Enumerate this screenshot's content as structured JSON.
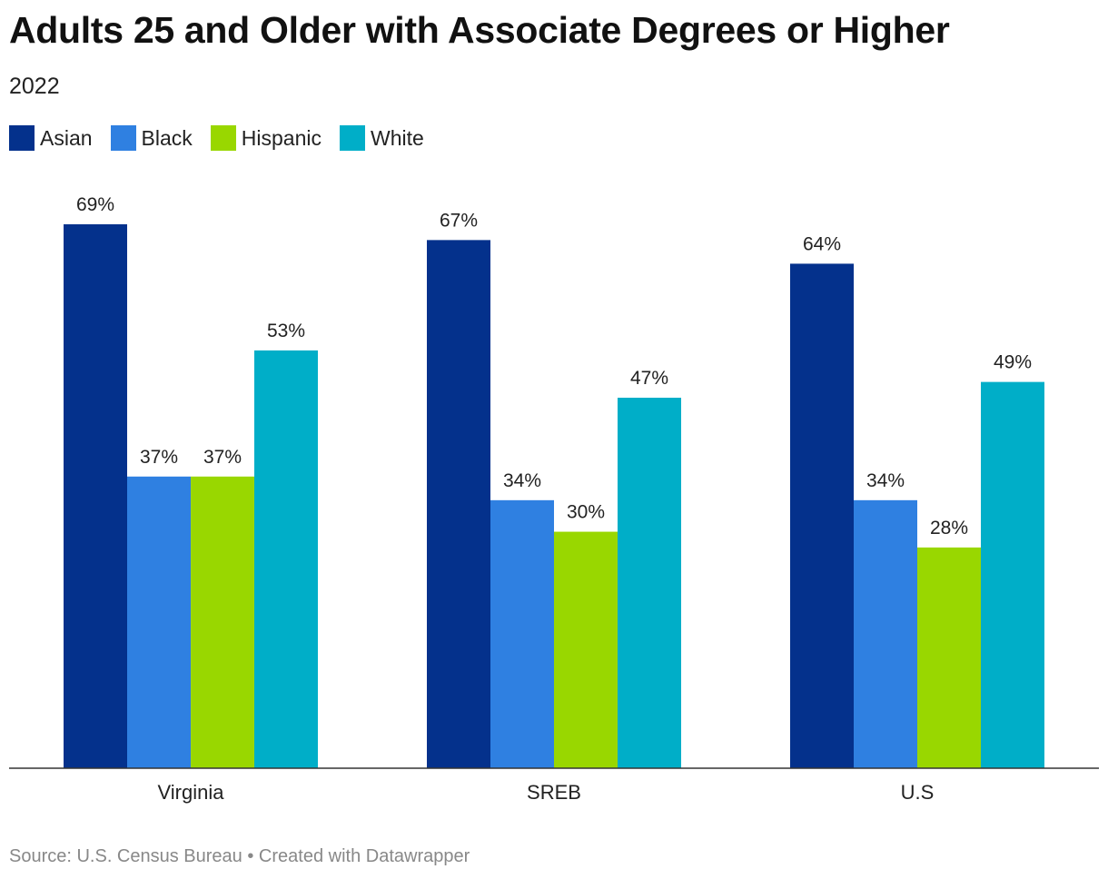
{
  "title": "Adults 25 and Older with Associate Degrees or Higher",
  "subtitle": "2022",
  "source": {
    "source_label": "Source: U.S. Census Bureau",
    "separator": " • ",
    "credit": "Created with Datawrapper"
  },
  "legend": [
    {
      "name": "Asian",
      "color": "#04318c"
    },
    {
      "name": "Black",
      "color": "#2f80e1"
    },
    {
      "name": "Hispanic",
      "color": "#99d700"
    },
    {
      "name": "White",
      "color": "#00aec8"
    }
  ],
  "chart_data": {
    "type": "bar",
    "title": "Adults 25 and Older with Associate Degrees or Higher",
    "subtitle": "2022",
    "categories": [
      "Virginia",
      "SREB",
      "U.S"
    ],
    "series": [
      {
        "name": "Asian",
        "values": [
          69,
          67,
          64
        ],
        "labels": [
          "69%",
          "67%",
          "64%"
        ]
      },
      {
        "name": "Black",
        "values": [
          37,
          34,
          34
        ],
        "labels": [
          "37%",
          "34%",
          "34%"
        ]
      },
      {
        "name": "Hispanic",
        "values": [
          37,
          30,
          28
        ],
        "labels": [
          "37%",
          "30%",
          "28%"
        ]
      },
      {
        "name": "White",
        "values": [
          53,
          47,
          49
        ],
        "labels": [
          "53%",
          "47%",
          "49%"
        ]
      }
    ],
    "unit": "%",
    "xlabel": "",
    "ylabel": "",
    "ylim": [
      0,
      69
    ],
    "grid": false,
    "legend_position": "top-left"
  }
}
